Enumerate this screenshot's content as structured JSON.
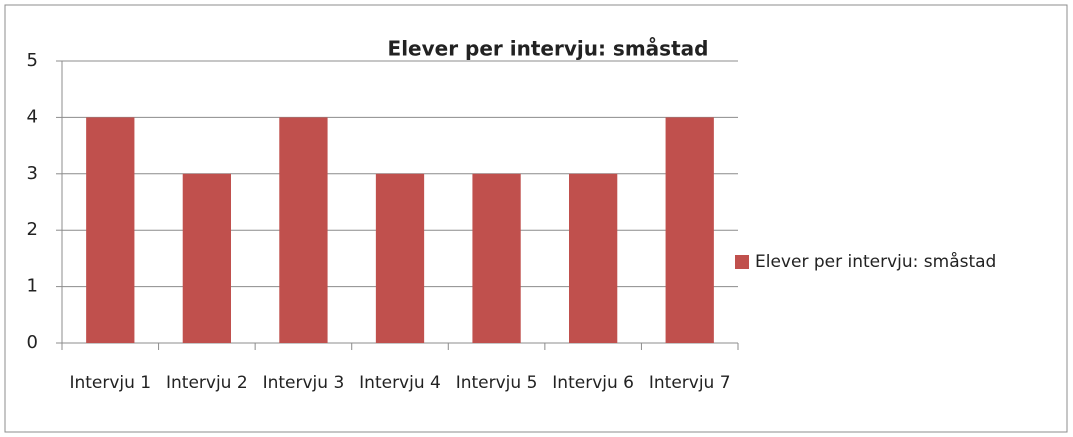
{
  "chart_data": {
    "type": "bar",
    "title": "Elever per intervju: småstad",
    "categories": [
      "Intervju 1",
      "Intervju 2",
      "Intervju 3",
      "Intervju 4",
      "Intervju 5",
      "Intervju 6",
      "Intervju 7"
    ],
    "series": [
      {
        "name": "Elever per intervju: småstad",
        "color": "#c0504d",
        "values": [
          4,
          3,
          4,
          3,
          3,
          3,
          4
        ]
      }
    ],
    "ylim": [
      0,
      5
    ],
    "yticks": [
      0,
      1,
      2,
      3,
      4,
      5
    ],
    "grid": true,
    "legend": "right"
  }
}
